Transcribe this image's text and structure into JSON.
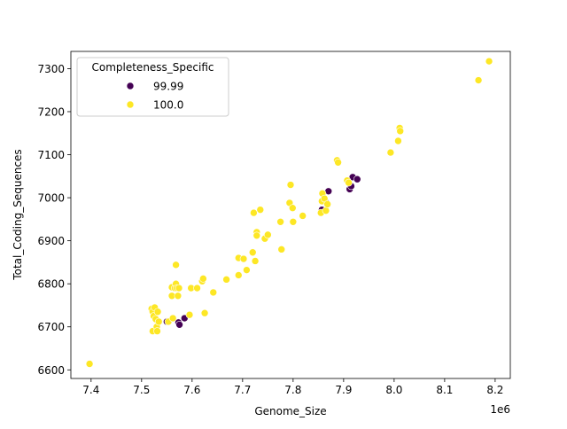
{
  "chart_data": {
    "type": "scatter",
    "title": "",
    "xlabel": "Genome_Size",
    "ylabel": "Total_Coding_Sequences",
    "x_offset_label": "1e6",
    "x_scale_factor": 1000000,
    "xlim": [
      7.36,
      8.23
    ],
    "ylim": [
      6580,
      7340
    ],
    "x_ticks": [
      7.4,
      7.5,
      7.6,
      7.7,
      7.8,
      7.9,
      8.0,
      8.1,
      8.2
    ],
    "x_tick_labels": [
      "7.4",
      "7.5",
      "7.6",
      "7.7",
      "7.8",
      "7.9",
      "8.0",
      "8.1",
      "8.2"
    ],
    "y_ticks": [
      6600,
      6700,
      6800,
      6900,
      7000,
      7100,
      7200,
      7300
    ],
    "y_tick_labels": [
      "6600",
      "6700",
      "6800",
      "6900",
      "7000",
      "7100",
      "7200",
      "7300"
    ],
    "grid": false,
    "legend": {
      "title": "Completeness_Specific",
      "placement": "top-left"
    },
    "series": [
      {
        "name": "99.99",
        "color": "#440154",
        "points": [
          [
            7.55,
            6712
          ],
          [
            7.573,
            6710
          ],
          [
            7.575,
            6705
          ],
          [
            7.585,
            6720
          ],
          [
            7.857,
            6972
          ],
          [
            7.866,
            6988
          ],
          [
            7.87,
            7015
          ],
          [
            7.912,
            7020
          ],
          [
            7.915,
            7027
          ],
          [
            7.918,
            7048
          ],
          [
            7.927,
            7043
          ]
        ]
      },
      {
        "name": "100.0",
        "color": "#fde725",
        "points": [
          [
            7.397,
            6614
          ],
          [
            7.52,
            6742
          ],
          [
            7.522,
            6735
          ],
          [
            7.522,
            6690
          ],
          [
            7.524,
            6725
          ],
          [
            7.526,
            6745
          ],
          [
            7.528,
            6718
          ],
          [
            7.53,
            6700
          ],
          [
            7.531,
            6690
          ],
          [
            7.532,
            6735
          ],
          [
            7.534,
            6712
          ],
          [
            7.553,
            6712
          ],
          [
            7.56,
            6792
          ],
          [
            7.56,
            6772
          ],
          [
            7.562,
            6720
          ],
          [
            7.566,
            6790
          ],
          [
            7.568,
            6844
          ],
          [
            7.568,
            6800
          ],
          [
            7.57,
            6790
          ],
          [
            7.572,
            6772
          ],
          [
            7.574,
            6790
          ],
          [
            7.595,
            6728
          ],
          [
            7.598,
            6790
          ],
          [
            7.61,
            6790
          ],
          [
            7.62,
            6806
          ],
          [
            7.622,
            6812
          ],
          [
            7.625,
            6732
          ],
          [
            7.642,
            6780
          ],
          [
            7.668,
            6810
          ],
          [
            7.692,
            6820
          ],
          [
            7.692,
            6860
          ],
          [
            7.702,
            6858
          ],
          [
            7.708,
            6832
          ],
          [
            7.72,
            6873
          ],
          [
            7.722,
            6965
          ],
          [
            7.725,
            6853
          ],
          [
            7.728,
            6920
          ],
          [
            7.728,
            6912
          ],
          [
            7.735,
            6972
          ],
          [
            7.744,
            6905
          ],
          [
            7.75,
            6914
          ],
          [
            7.775,
            6944
          ],
          [
            7.777,
            6880
          ],
          [
            7.793,
            6988
          ],
          [
            7.795,
            7030
          ],
          [
            7.799,
            6976
          ],
          [
            7.8,
            6944
          ],
          [
            7.819,
            6958
          ],
          [
            7.855,
            6965
          ],
          [
            7.857,
            6992
          ],
          [
            7.858,
            7010
          ],
          [
            7.862,
            6998
          ],
          [
            7.865,
            6970
          ],
          [
            7.868,
            6985
          ],
          [
            7.887,
            7087
          ],
          [
            7.889,
            7082
          ],
          [
            7.907,
            7040
          ],
          [
            7.91,
            7035
          ],
          [
            7.993,
            7105
          ],
          [
            8.008,
            7132
          ],
          [
            8.011,
            7162
          ],
          [
            8.012,
            7155
          ],
          [
            8.167,
            7273
          ],
          [
            8.188,
            7317
          ]
        ]
      }
    ]
  }
}
